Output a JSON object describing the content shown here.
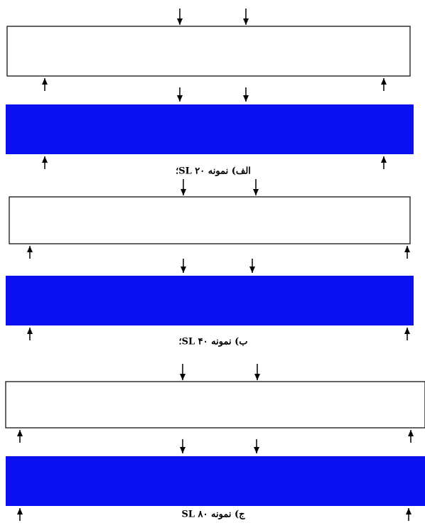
{
  "panels": [
    {
      "caption": "الف) نمونه SL ۲۰؛"
    },
    {
      "caption": "ب) نمونه SL ۴۰؛"
    },
    {
      "caption": "ج) نمونه SL ۸۰"
    }
  ]
}
